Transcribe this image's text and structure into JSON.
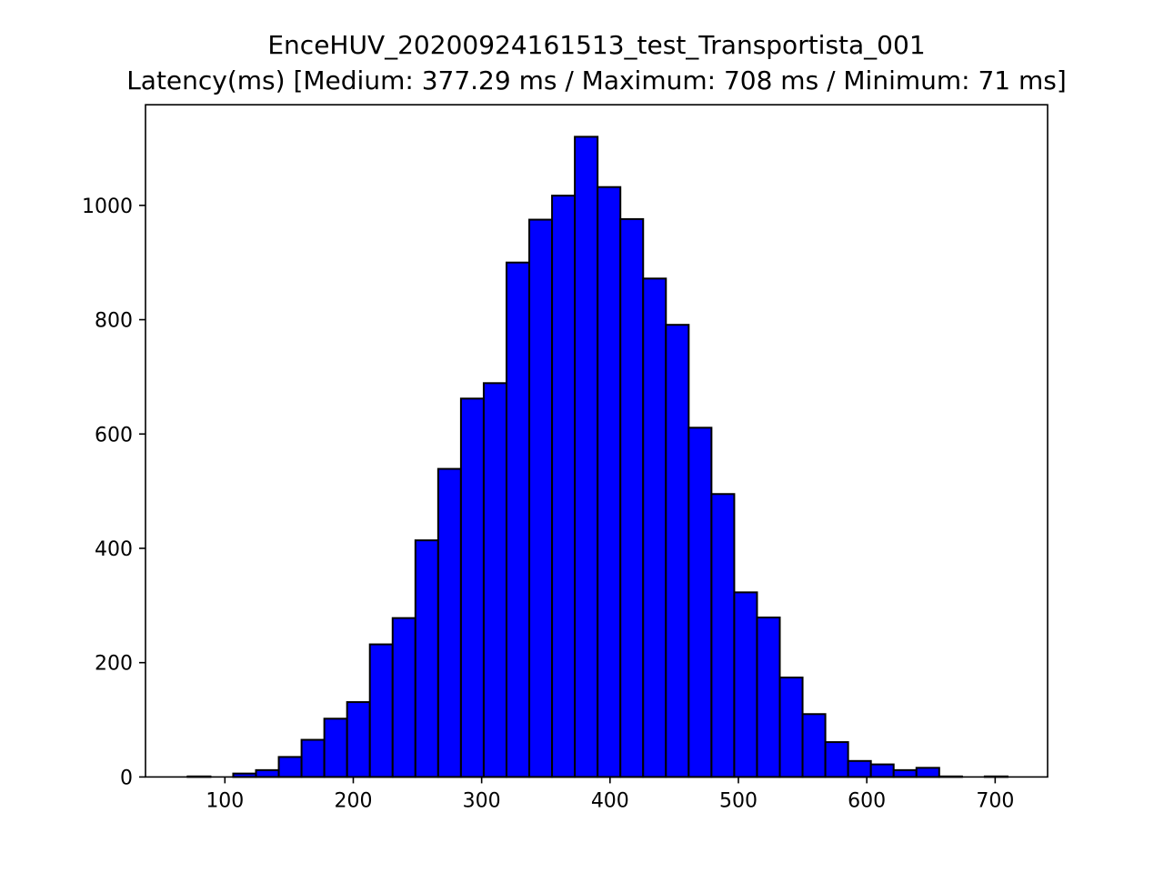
{
  "chart_data": {
    "type": "bar",
    "subtype": "histogram",
    "title": "EnceHUV_20200924161513_test_Transportista_001",
    "subtitle": "Latency(ms) [Medium: 377.29 ms / Maximum: 708 ms / Minimum: 71 ms]",
    "xlabel": "",
    "ylabel": "",
    "xlim": [
      38.15,
      740.85
    ],
    "ylim": [
      0,
      1176
    ],
    "xticks": [
      100,
      200,
      300,
      400,
      500,
      600,
      700
    ],
    "yticks": [
      0,
      200,
      400,
      600,
      800,
      1000
    ],
    "grid": false,
    "legend": "none",
    "bar_color": "#0000ff",
    "edge_color": "#000000",
    "bin_start": 71,
    "bin_width": 17.74,
    "values": [
      1,
      0,
      6,
      12,
      35,
      65,
      102,
      131,
      232,
      278,
      414,
      539,
      662,
      689,
      900,
      975,
      1017,
      1120,
      1032,
      976,
      872,
      791,
      611,
      495,
      323,
      279,
      174,
      110,
      61,
      28,
      22,
      12,
      16,
      1,
      0,
      1
    ]
  }
}
